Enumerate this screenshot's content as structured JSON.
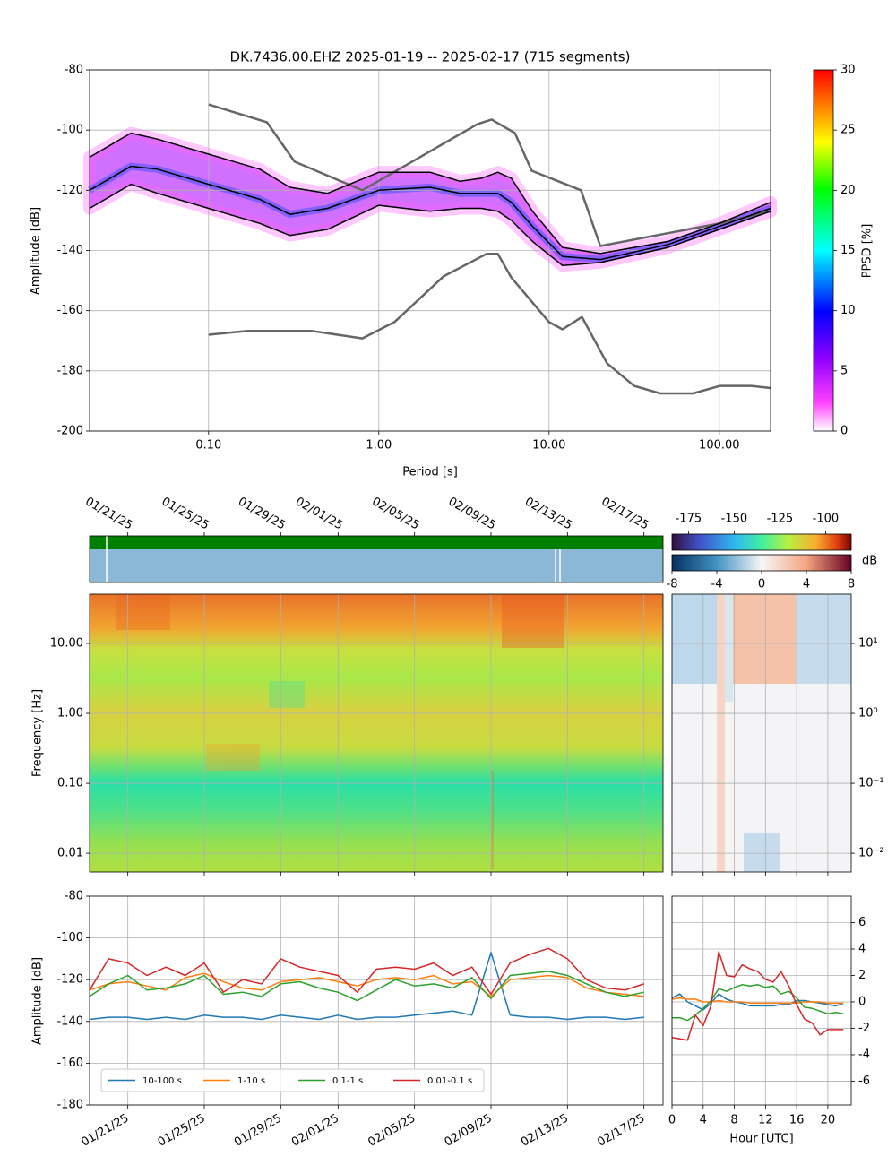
{
  "chart_data": [
    {
      "type": "line",
      "title": "DK.7436.00.EHZ   2025-01-19 -- 2025-02-17  (715 segments)",
      "xlabel": "Period [s]",
      "ylabel": "Amplitude [dB]",
      "xlog": true,
      "xlim": [
        0.02,
        200
      ],
      "xticks": [
        {
          "value": 0.1,
          "label": "0.10"
        },
        {
          "value": 1,
          "label": "1.00"
        },
        {
          "value": 10,
          "label": "10.00"
        },
        {
          "value": 100,
          "label": "100.00"
        }
      ],
      "ylim": [
        -200,
        -80
      ],
      "yticks": [
        -200,
        -180,
        -160,
        -140,
        -120,
        -100,
        -80
      ],
      "grid": true,
      "colorbar": {
        "label": "PPSD [%]",
        "lim": [
          0,
          30
        ],
        "ticks": [
          0,
          5,
          10,
          15,
          20,
          25,
          30
        ]
      },
      "series": [
        {
          "color": "#666666",
          "x": [
            0.1,
            0.22,
            0.32,
            0.8,
            3.8,
            4.6,
            6.3,
            7.9,
            15.4,
            20,
            100,
            200
          ],
          "values": [
            -91.5,
            -97.4,
            -110.5,
            -120,
            -98,
            -96.5,
            -101,
            -113.5,
            -120,
            -138.5,
            -131,
            -127
          ]
        },
        {
          "color": "#666666",
          "x": [
            0.1,
            0.17,
            0.4,
            0.8,
            1.24,
            2.4,
            4.3,
            5,
            6,
            10,
            12,
            15.6,
            21.9,
            31.6,
            45,
            70,
            101,
            154,
            200
          ],
          "values": [
            -168,
            -166.7,
            -166.7,
            -169.2,
            -163.7,
            -148.6,
            -141.1,
            -141.1,
            -149,
            -163.8,
            -166.2,
            -162.1,
            -177.5,
            -185,
            -187.5,
            -187.5,
            -185,
            -185,
            -185.7
          ]
        },
        {
          "color": "#000000",
          "x": [
            0.02,
            0.035,
            0.05,
            0.1,
            0.2,
            0.3,
            0.5,
            1,
            2,
            3,
            4,
            5,
            6,
            8,
            12,
            20,
            50,
            100,
            200
          ],
          "values": [
            -109,
            -101,
            -103,
            -108,
            -113,
            -119,
            -121,
            -114,
            -114,
            -117,
            -116,
            -114,
            -116,
            -127,
            -139,
            -141,
            -137,
            -131,
            -124
          ]
        },
        {
          "color": "#000000",
          "x": [
            0.02,
            0.035,
            0.05,
            0.1,
            0.2,
            0.3,
            0.5,
            1,
            2,
            3,
            4,
            5,
            6,
            8,
            12,
            20,
            50,
            100,
            200
          ],
          "values": [
            -120,
            -112,
            -113,
            -118,
            -123,
            -128,
            -126,
            -120,
            -119,
            -121,
            -121,
            -121,
            -124,
            -132,
            -142,
            -143,
            -138,
            -132,
            -126
          ]
        },
        {
          "color": "#000000",
          "x": [
            0.02,
            0.035,
            0.05,
            0.1,
            0.2,
            0.3,
            0.5,
            1,
            2,
            3,
            4,
            5,
            6,
            8,
            12,
            20,
            50,
            100,
            200
          ],
          "values": [
            -126,
            -118,
            -121,
            -126,
            -131,
            -135,
            -133,
            -125,
            -127,
            -126,
            -126,
            -127,
            -130,
            -137,
            -145,
            -144,
            -139,
            -133,
            -127
          ]
        }
      ]
    },
    {
      "type": "spectrogram",
      "ylabel": "Frequency [Hz]",
      "ylog": true,
      "ylim": [
        0.0054,
        50.7
      ],
      "yticks": [
        {
          "value": 0.01,
          "label": "0.01"
        },
        {
          "value": 0.1,
          "label": "0.10"
        },
        {
          "value": 1,
          "label": "1.00"
        },
        {
          "value": 10,
          "label": "10.00"
        }
      ],
      "colorbar": {
        "lim": [
          -184,
          -86
        ],
        "ticks": [
          -175,
          -150,
          -125,
          -100
        ]
      }
    },
    {
      "type": "spectrogram",
      "ylog": true,
      "ylim": [
        0.0054,
        50.7
      ],
      "yticks": [
        {
          "value": 0.01,
          "label": "10⁻²"
        },
        {
          "value": 0.1,
          "label": "10⁻¹"
        },
        {
          "value": 1,
          "label": "10⁰"
        },
        {
          "value": 10,
          "label": "10¹"
        }
      ],
      "colorbar": {
        "label": "dB",
        "lim": [
          -8,
          8
        ],
        "ticks": [
          -8,
          -4,
          0,
          4,
          8
        ]
      }
    },
    {
      "type": "line",
      "ylabel": "Amplitude [dB]",
      "x": [
        "01/19/25",
        "01/20/25",
        "01/21/25",
        "01/22/25",
        "01/23/25",
        "01/24/25",
        "01/25/25",
        "01/26/25",
        "01/27/25",
        "01/28/25",
        "01/29/25",
        "01/30/25",
        "01/31/25",
        "02/01/25",
        "02/02/25",
        "02/03/25",
        "02/04/25",
        "02/05/25",
        "02/06/25",
        "02/07/25",
        "02/08/25",
        "02/09/25",
        "02/10/25",
        "02/11/25",
        "02/12/25",
        "02/13/25",
        "02/14/25",
        "02/15/25",
        "02/16/25",
        "02/17/25"
      ],
      "xlim": [
        "01/19/25",
        "02/18/25"
      ],
      "xticks": [
        "01/21/25",
        "01/25/25",
        "01/29/25",
        "02/01/25",
        "02/05/25",
        "02/09/25",
        "02/13/25",
        "02/17/25"
      ],
      "ylim": [
        -180,
        -80
      ],
      "yticks": [
        -180,
        -160,
        -140,
        -120,
        -100,
        -80
      ],
      "grid": true,
      "legend": "lower left",
      "series": [
        {
          "name": "10-100 s",
          "color": "#1f77b4",
          "values": [
            -139,
            -138,
            -138,
            -139,
            -138,
            -139,
            -137,
            -138,
            -138,
            -139,
            -137,
            -138,
            -139,
            -137,
            -139,
            -138,
            -138,
            -137,
            -136,
            -135,
            -137,
            -107,
            -137,
            -138,
            -138,
            -139,
            -138,
            -138,
            -139,
            -138
          ]
        },
        {
          "name": "1-10 s",
          "color": "#ff7f0e",
          "values": [
            -125,
            -122,
            -121,
            -123,
            -125,
            -119,
            -117,
            -121,
            -124,
            -125,
            -121,
            -120,
            -119,
            -121,
            -123,
            -120,
            -119,
            -120,
            -118,
            -122,
            -121,
            -128,
            -120,
            -119,
            -118,
            -119,
            -124,
            -126,
            -127,
            -128
          ]
        },
        {
          "name": "0.1-1 s",
          "color": "#2ca02c",
          "values": [
            -128,
            -122,
            -118,
            -125,
            -124,
            -122,
            -118,
            -127,
            -126,
            -128,
            -122,
            -121,
            -124,
            -126,
            -130,
            -125,
            -120,
            -123,
            -122,
            -124,
            -119,
            -129,
            -118,
            -117,
            -116,
            -118,
            -122,
            -126,
            -128,
            -126
          ]
        },
        {
          "name": "0.01-0.1 s",
          "color": "#d62728",
          "values": [
            -125,
            -110,
            -112,
            -118,
            -114,
            -118,
            -112,
            -126,
            -120,
            -122,
            -110,
            -114,
            -116,
            -118,
            -126,
            -115,
            -114,
            -115,
            -112,
            -118,
            -114,
            -127,
            -112,
            -108,
            -105,
            -110,
            -120,
            -124,
            -125,
            -122
          ]
        }
      ]
    },
    {
      "type": "line",
      "xlabel": "Hour [UTC]",
      "x": [
        0,
        1,
        2,
        3,
        4,
        5,
        6,
        7,
        8,
        9,
        10,
        11,
        12,
        13,
        14,
        15,
        16,
        17,
        18,
        19,
        20,
        21,
        22
      ],
      "xlim": [
        0,
        23
      ],
      "xticks": [
        0,
        4,
        8,
        12,
        16,
        20
      ],
      "ylim": [
        -7.8,
        8
      ],
      "yticks": [
        -6,
        -4,
        -2,
        0,
        2,
        4,
        6
      ],
      "grid": true,
      "series": [
        {
          "color": "#1f77b4",
          "values": [
            0.3,
            0.6,
            0,
            -0.3,
            -0.6,
            -0.1,
            0.6,
            0.2,
            0,
            -0.1,
            -0.3,
            -0.3,
            -0.3,
            -0.3,
            -0.2,
            -0.2,
            0.1,
            0.1,
            0,
            -0.1,
            -0.2,
            -0.3,
            -0.1
          ]
        },
        {
          "color": "#ff7f0e",
          "values": [
            0.2,
            0.3,
            0.2,
            0.2,
            0,
            0,
            0.1,
            0,
            0,
            0,
            -0.1,
            -0.1,
            -0.1,
            -0.1,
            -0.1,
            -0.1,
            -0.1,
            0,
            0,
            0,
            -0.1,
            -0.1,
            -0.1
          ]
        },
        {
          "color": "#2ca02c",
          "values": [
            -1.2,
            -1.2,
            -1.4,
            -1,
            -0.5,
            0.1,
            1,
            0.8,
            1.1,
            1.3,
            1.2,
            1.3,
            1.1,
            1.2,
            0.6,
            0.8,
            0.3,
            -0.4,
            -0.5,
            -0.7,
            -0.9,
            -0.8,
            -0.9
          ]
        },
        {
          "color": "#d62728",
          "values": [
            -2.7,
            -2.8,
            -2.9,
            -1,
            -1.8,
            -0.3,
            3.8,
            2,
            1.9,
            2.8,
            2.5,
            2.3,
            1.7,
            1.5,
            2.3,
            1.2,
            -0.2,
            -1.3,
            -1.6,
            -2.5,
            -2.1,
            -2.1,
            -2.1
          ]
        }
      ]
    }
  ]
}
